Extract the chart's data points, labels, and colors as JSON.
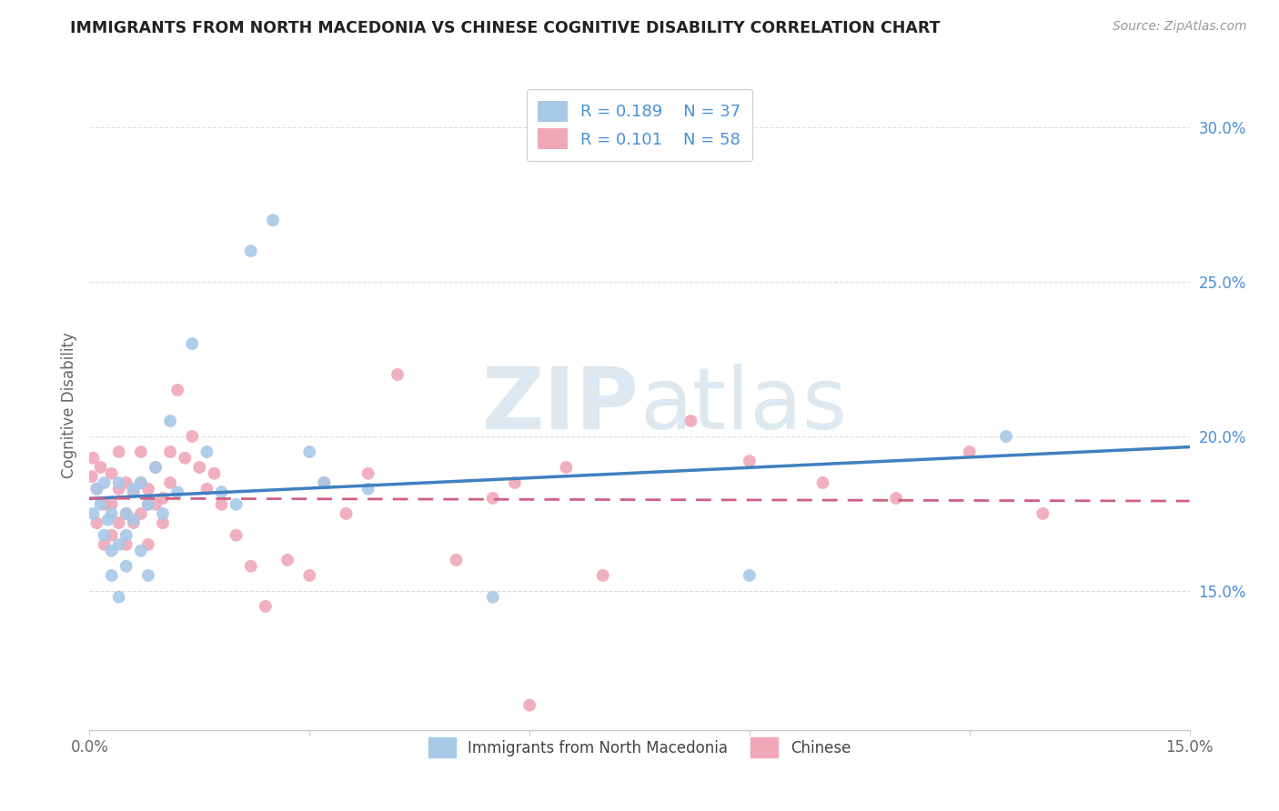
{
  "title": "IMMIGRANTS FROM NORTH MACEDONIA VS CHINESE COGNITIVE DISABILITY CORRELATION CHART",
  "source": "Source: ZipAtlas.com",
  "ylabel": "Cognitive Disability",
  "xlim": [
    0,
    0.15
  ],
  "ylim": [
    0.105,
    0.315
  ],
  "yticks_right": [
    0.15,
    0.2,
    0.25,
    0.3
  ],
  "ytickslabels_right": [
    "15.0%",
    "20.0%",
    "25.0%",
    "30.0%"
  ],
  "blue_color": "#a8c8e8",
  "pink_color": "#f0a8b8",
  "blue_line_color": "#4080c0",
  "pink_line_color": "#d06080",
  "legend_R1": "R = 0.189",
  "legend_N1": "N = 37",
  "legend_R2": "R = 0.101",
  "legend_N2": "N = 58",
  "legend_label1": "Immigrants from North Macedonia",
  "legend_label2": "Chinese",
  "blue_x": [
    0.0005,
    0.001,
    0.0015,
    0.002,
    0.002,
    0.0025,
    0.003,
    0.003,
    0.003,
    0.004,
    0.004,
    0.004,
    0.005,
    0.005,
    0.005,
    0.006,
    0.006,
    0.007,
    0.007,
    0.008,
    0.008,
    0.009,
    0.01,
    0.011,
    0.012,
    0.014,
    0.016,
    0.018,
    0.02,
    0.022,
    0.025,
    0.03,
    0.032,
    0.038,
    0.055,
    0.09,
    0.125
  ],
  "blue_y": [
    0.175,
    0.183,
    0.178,
    0.168,
    0.185,
    0.173,
    0.175,
    0.163,
    0.155,
    0.165,
    0.148,
    0.185,
    0.175,
    0.168,
    0.158,
    0.183,
    0.173,
    0.185,
    0.163,
    0.178,
    0.155,
    0.19,
    0.175,
    0.205,
    0.182,
    0.23,
    0.195,
    0.182,
    0.178,
    0.26,
    0.27,
    0.195,
    0.185,
    0.183,
    0.148,
    0.155,
    0.2
  ],
  "pink_x": [
    0.0003,
    0.0005,
    0.001,
    0.001,
    0.0015,
    0.002,
    0.002,
    0.003,
    0.003,
    0.003,
    0.004,
    0.004,
    0.004,
    0.005,
    0.005,
    0.005,
    0.006,
    0.006,
    0.007,
    0.007,
    0.007,
    0.008,
    0.008,
    0.008,
    0.009,
    0.009,
    0.01,
    0.01,
    0.011,
    0.011,
    0.012,
    0.013,
    0.014,
    0.015,
    0.016,
    0.017,
    0.018,
    0.02,
    0.022,
    0.024,
    0.027,
    0.03,
    0.032,
    0.035,
    0.038,
    0.042,
    0.05,
    0.055,
    0.06,
    0.065,
    0.07,
    0.082,
    0.09,
    0.1,
    0.11,
    0.12,
    0.13,
    0.058
  ],
  "pink_y": [
    0.187,
    0.193,
    0.183,
    0.172,
    0.19,
    0.178,
    0.165,
    0.188,
    0.178,
    0.168,
    0.183,
    0.172,
    0.195,
    0.175,
    0.165,
    0.185,
    0.182,
    0.172,
    0.185,
    0.175,
    0.195,
    0.183,
    0.178,
    0.165,
    0.19,
    0.178,
    0.18,
    0.172,
    0.195,
    0.185,
    0.215,
    0.193,
    0.2,
    0.19,
    0.183,
    0.188,
    0.178,
    0.168,
    0.158,
    0.145,
    0.16,
    0.155,
    0.185,
    0.175,
    0.188,
    0.22,
    0.16,
    0.18,
    0.113,
    0.19,
    0.155,
    0.205,
    0.192,
    0.185,
    0.18,
    0.195,
    0.175,
    0.185
  ],
  "scatter_size": 100,
  "background_color": "#ffffff",
  "grid_color": "#dddddd"
}
